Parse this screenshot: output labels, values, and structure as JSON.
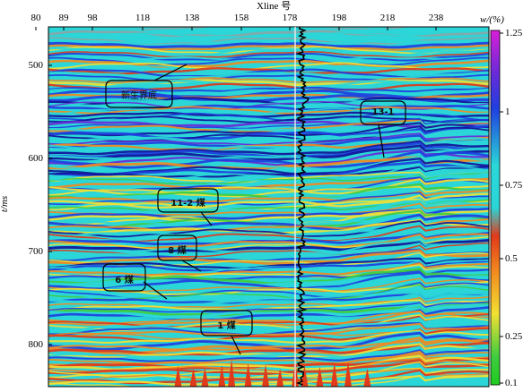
{
  "title": "Xline 号",
  "y_axis_label": "t/ms",
  "colorbar_title": "w/(%)",
  "x_ticks": [
    "80",
    "89",
    "98",
    "118",
    "138",
    "158",
    "178",
    "198",
    "218",
    "238"
  ],
  "y_ticks": [
    "500",
    "600",
    "700",
    "800"
  ],
  "colorbar_ticks": [
    "1.25",
    "1",
    "0.75",
    "0.5",
    "0.25",
    "0.1"
  ],
  "callouts": [
    "新生界底",
    "13-1",
    "11-2 煤",
    "8 煤",
    "6 煤",
    "1 煤"
  ],
  "colors": {
    "cyan": "#2ad6d8",
    "blue": "#1f3fe0",
    "navy": "#12129a",
    "green": "#3fcc3f",
    "yellow": "#f2e033",
    "orange": "#f28a1e",
    "red": "#e03a1a",
    "purple": "#6a2ad8",
    "gray": "#8aa6a8"
  }
}
